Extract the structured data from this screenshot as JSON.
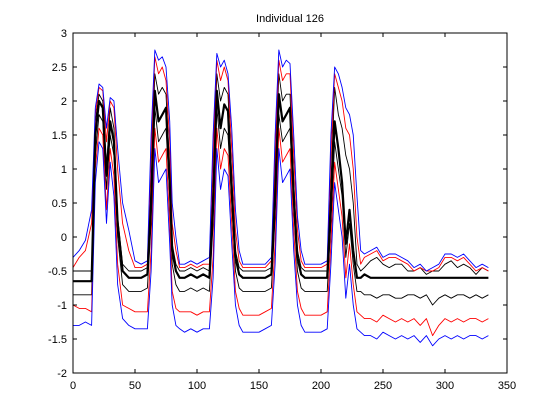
{
  "chart_data": {
    "type": "line",
    "title": "Individual 126",
    "xlabel": "",
    "ylabel": "",
    "xlim": [
      0,
      350
    ],
    "ylim": [
      -2,
      3
    ],
    "xticks": [
      0,
      50,
      100,
      150,
      200,
      250,
      300,
      350
    ],
    "yticks": [
      -2,
      -1.5,
      -1,
      -0.5,
      0,
      0.5,
      1,
      1.5,
      2,
      2.5,
      3
    ],
    "xtick_labels": [
      "0",
      "50",
      "100",
      "150",
      "200",
      "250",
      "300",
      "350"
    ],
    "ytick_labels": [
      "-2",
      "-1.5",
      "-1",
      "-0.5",
      "0",
      "0.5",
      "1",
      "1.5",
      "2",
      "2.5",
      "3"
    ],
    "grid": false,
    "legend": "none",
    "colors": {
      "mean": "#000000",
      "inner_band": "#000000",
      "mid_band": "#ff0000",
      "outer_band": "#0000ff",
      "axes": "#000000",
      "background": "#ffffff"
    },
    "x": [
      0,
      5,
      10,
      15,
      18,
      21,
      24,
      27,
      30,
      33,
      36,
      40,
      45,
      50,
      55,
      60,
      63,
      66,
      69,
      72,
      75,
      78,
      80,
      83,
      86,
      90,
      95,
      100,
      105,
      110,
      113,
      116,
      119,
      122,
      125,
      128,
      131,
      134,
      137,
      140,
      145,
      150,
      155,
      160,
      163,
      166,
      169,
      172,
      175,
      178,
      181,
      184,
      187,
      190,
      195,
      200,
      205,
      208,
      211,
      214,
      217,
      220,
      223,
      226,
      229,
      232,
      235,
      240,
      245,
      250,
      255,
      260,
      265,
      270,
      275,
      280,
      285,
      290,
      295,
      300,
      305,
      310,
      315,
      320,
      325,
      330,
      335
    ],
    "series": [
      {
        "role": "mean",
        "values": [
          -0.65,
          -0.65,
          -0.65,
          -0.65,
          1.5,
          2.0,
          1.9,
          0.9,
          1.7,
          1.4,
          0.2,
          -0.5,
          -0.6,
          -0.6,
          -0.6,
          -0.55,
          0.5,
          2.15,
          1.7,
          1.8,
          1.9,
          0.8,
          -0.2,
          -0.5,
          -0.6,
          -0.6,
          -0.55,
          -0.6,
          -0.55,
          -0.6,
          0.5,
          2.15,
          1.6,
          1.95,
          1.85,
          0.7,
          -0.3,
          -0.55,
          -0.6,
          -0.6,
          -0.6,
          -0.6,
          -0.6,
          -0.55,
          0.6,
          2.1,
          1.7,
          1.8,
          1.9,
          0.6,
          -0.3,
          -0.55,
          -0.6,
          -0.6,
          -0.6,
          -0.6,
          -0.6,
          0.5,
          1.7,
          1.3,
          0.8,
          -0.1,
          0.4,
          -0.2,
          -0.6,
          -0.6,
          -0.55,
          -0.6,
          -0.6,
          -0.6,
          -0.6,
          -0.6,
          -0.6,
          -0.6,
          -0.6,
          -0.6,
          -0.6,
          -0.6,
          -0.6,
          -0.6,
          -0.6,
          -0.6,
          -0.6,
          -0.6,
          -0.6,
          -0.6,
          -0.6
        ]
      },
      {
        "role": "mean+1sd",
        "values": [
          -0.5,
          -0.5,
          -0.5,
          -0.5,
          1.7,
          2.1,
          2.0,
          1.0,
          1.9,
          1.6,
          0.3,
          -0.4,
          -0.5,
          -0.5,
          -0.5,
          -0.45,
          0.8,
          2.4,
          2.1,
          2.2,
          2.1,
          1.0,
          -0.1,
          -0.4,
          -0.5,
          -0.5,
          -0.45,
          -0.5,
          -0.45,
          -0.5,
          0.8,
          2.4,
          2.0,
          2.2,
          2.1,
          0.9,
          -0.2,
          -0.45,
          -0.5,
          -0.5,
          -0.5,
          -0.5,
          -0.5,
          -0.45,
          0.9,
          2.4,
          2.0,
          2.1,
          2.1,
          0.8,
          -0.2,
          -0.45,
          -0.5,
          -0.5,
          -0.5,
          -0.5,
          -0.5,
          0.8,
          2.2,
          1.8,
          1.6,
          1.2,
          1.0,
          0.5,
          -0.4,
          -0.5,
          -0.45,
          -0.35,
          -0.3,
          -0.4,
          -0.45,
          -0.4,
          -0.4,
          -0.5,
          -0.5,
          -0.45,
          -0.55,
          -0.5,
          -0.5,
          -0.4,
          -0.35,
          -0.45,
          -0.4,
          -0.45,
          -0.55,
          -0.45,
          -0.5
        ]
      },
      {
        "role": "mean-1sd",
        "values": [
          -0.85,
          -0.85,
          -0.85,
          -0.85,
          1.2,
          1.8,
          1.7,
          0.7,
          1.5,
          1.2,
          0.0,
          -0.7,
          -0.8,
          -0.8,
          -0.8,
          -0.75,
          0.2,
          1.9,
          1.4,
          1.5,
          1.6,
          0.6,
          -0.4,
          -0.7,
          -0.8,
          -0.8,
          -0.75,
          -0.8,
          -0.75,
          -0.8,
          0.2,
          1.9,
          1.3,
          1.6,
          1.5,
          0.5,
          -0.5,
          -0.75,
          -0.8,
          -0.8,
          -0.8,
          -0.8,
          -0.8,
          -0.75,
          0.3,
          1.8,
          1.4,
          1.5,
          1.6,
          0.4,
          -0.5,
          -0.75,
          -0.8,
          -0.8,
          -0.8,
          -0.8,
          -0.8,
          0.2,
          1.4,
          1.0,
          0.6,
          -0.3,
          0.2,
          -0.4,
          -0.8,
          -0.8,
          -0.85,
          -0.85,
          -0.9,
          -0.85,
          -0.85,
          -0.9,
          -0.9,
          -0.85,
          -0.85,
          -0.9,
          -0.85,
          -1.0,
          -0.9,
          -0.85,
          -0.9,
          -0.85,
          -0.85,
          -0.9,
          -0.85,
          -0.9,
          -0.85
        ]
      },
      {
        "role": "mean+2sd",
        "values": [
          -0.45,
          -0.3,
          -0.2,
          0.2,
          1.8,
          2.2,
          2.15,
          1.4,
          2.0,
          1.9,
          1.0,
          0.2,
          -0.2,
          -0.45,
          -0.45,
          -0.4,
          1.2,
          2.65,
          2.4,
          2.5,
          2.3,
          1.4,
          0.2,
          -0.2,
          -0.45,
          -0.45,
          -0.4,
          -0.45,
          -0.4,
          -0.4,
          1.2,
          2.6,
          2.3,
          2.5,
          2.3,
          1.3,
          0.1,
          -0.35,
          -0.45,
          -0.45,
          -0.45,
          -0.45,
          -0.45,
          -0.35,
          1.2,
          2.6,
          2.3,
          2.4,
          2.4,
          1.2,
          0.1,
          -0.35,
          -0.45,
          -0.45,
          -0.45,
          -0.45,
          -0.4,
          1.2,
          2.4,
          2.2,
          2.0,
          1.6,
          1.5,
          1.0,
          0.0,
          -0.4,
          -0.3,
          -0.25,
          -0.2,
          -0.35,
          -0.3,
          -0.3,
          -0.35,
          -0.4,
          -0.5,
          -0.45,
          -0.5,
          -0.5,
          -0.45,
          -0.3,
          -0.3,
          -0.35,
          -0.3,
          -0.4,
          -0.5,
          -0.45,
          -0.5
        ]
      },
      {
        "role": "mean-2sd",
        "values": [
          -1.0,
          -1.05,
          -1.05,
          -1.1,
          1.0,
          1.6,
          1.5,
          0.4,
          1.3,
          0.9,
          -0.4,
          -1.0,
          -1.05,
          -1.1,
          -1.1,
          -1.1,
          -0.2,
          1.6,
          1.1,
          1.2,
          1.3,
          0.2,
          -0.8,
          -1.05,
          -1.1,
          -1.1,
          -1.1,
          -1.15,
          -1.1,
          -1.1,
          -0.3,
          1.6,
          1.0,
          1.3,
          1.2,
          0.2,
          -0.8,
          -1.05,
          -1.15,
          -1.15,
          -1.15,
          -1.15,
          -1.1,
          -1.05,
          -0.1,
          1.6,
          1.1,
          1.2,
          1.3,
          0.1,
          -0.8,
          -1.05,
          -1.15,
          -1.15,
          -1.15,
          -1.15,
          -1.1,
          -0.1,
          1.1,
          0.7,
          0.3,
          -0.6,
          -0.1,
          -0.7,
          -1.1,
          -1.15,
          -1.2,
          -1.2,
          -1.25,
          -1.15,
          -1.2,
          -1.25,
          -1.2,
          -1.25,
          -1.2,
          -1.3,
          -1.2,
          -1.45,
          -1.3,
          -1.2,
          -1.25,
          -1.2,
          -1.25,
          -1.2,
          -1.2,
          -1.25,
          -1.2
        ]
      },
      {
        "role": "mean+3sd",
        "values": [
          -0.3,
          -0.2,
          -0.05,
          0.4,
          1.9,
          2.25,
          2.2,
          1.6,
          2.05,
          2.0,
          1.3,
          0.5,
          0.1,
          -0.35,
          -0.4,
          -0.35,
          1.5,
          2.75,
          2.6,
          2.65,
          2.5,
          1.7,
          0.5,
          0.0,
          -0.4,
          -0.4,
          -0.35,
          -0.4,
          -0.35,
          -0.3,
          1.5,
          2.7,
          2.5,
          2.6,
          2.4,
          1.6,
          0.4,
          -0.2,
          -0.4,
          -0.4,
          -0.4,
          -0.4,
          -0.4,
          -0.3,
          1.5,
          2.75,
          2.5,
          2.6,
          2.55,
          1.5,
          0.3,
          -0.2,
          -0.4,
          -0.4,
          -0.4,
          -0.4,
          -0.35,
          1.5,
          2.5,
          2.4,
          2.2,
          1.9,
          1.8,
          1.5,
          0.6,
          -0.2,
          -0.25,
          -0.2,
          -0.15,
          -0.3,
          -0.25,
          -0.25,
          -0.3,
          -0.35,
          -0.45,
          -0.4,
          -0.5,
          -0.45,
          -0.4,
          -0.25,
          -0.25,
          -0.3,
          -0.25,
          -0.35,
          -0.45,
          -0.4,
          -0.45
        ]
      },
      {
        "role": "mean-3sd",
        "values": [
          -1.3,
          -1.3,
          -1.25,
          -1.3,
          0.8,
          1.4,
          1.3,
          0.2,
          1.1,
          0.6,
          -0.7,
          -1.2,
          -1.3,
          -1.35,
          -1.35,
          -1.35,
          -0.5,
          1.3,
          0.8,
          0.9,
          1.0,
          -0.1,
          -1.0,
          -1.3,
          -1.35,
          -1.4,
          -1.35,
          -1.4,
          -1.35,
          -1.35,
          -0.6,
          1.3,
          0.7,
          1.0,
          0.9,
          -0.1,
          -1.0,
          -1.3,
          -1.4,
          -1.4,
          -1.4,
          -1.4,
          -1.35,
          -1.3,
          -0.4,
          1.3,
          0.8,
          0.9,
          1.0,
          -0.2,
          -1.0,
          -1.3,
          -1.4,
          -1.4,
          -1.4,
          -1.4,
          -1.35,
          -0.4,
          0.8,
          0.4,
          0.0,
          -0.9,
          -0.4,
          -1.0,
          -1.35,
          -1.4,
          -1.45,
          -1.45,
          -1.5,
          -1.4,
          -1.45,
          -1.5,
          -1.45,
          -1.5,
          -1.45,
          -1.55,
          -1.45,
          -1.6,
          -1.5,
          -1.45,
          -1.5,
          -1.45,
          -1.5,
          -1.45,
          -1.45,
          -1.5,
          -1.45
        ]
      }
    ]
  }
}
